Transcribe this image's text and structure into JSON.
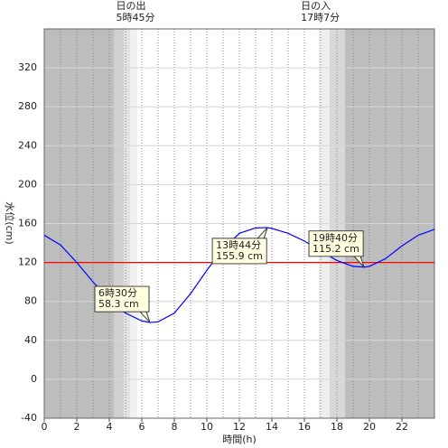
{
  "chart_data": {
    "type": "line",
    "x_label": "時間(h)",
    "y_label": "水位(cm)",
    "x": [
      0,
      1,
      2,
      3,
      4,
      5,
      6,
      6.5,
      7,
      8,
      9,
      10,
      11,
      12,
      13,
      13.73,
      14,
      15,
      16,
      17,
      18,
      19,
      19.67,
      20,
      21,
      22,
      23,
      24
    ],
    "series": [
      {
        "color": "#0000ff",
        "values": [
          148,
          138,
          120,
          100,
          82,
          68,
          60,
          58.3,
          59,
          68,
          88,
          112,
          134,
          150,
          155.5,
          155.9,
          155,
          150,
          142,
          132,
          122,
          116,
          115.2,
          116,
          124,
          137,
          148,
          154
        ]
      }
    ],
    "xlim": [
      0,
      24
    ],
    "xticks": [
      0,
      2,
      4,
      6,
      8,
      10,
      12,
      14,
      16,
      18,
      20,
      22
    ],
    "ylim": [
      -40,
      360
    ],
    "yticks": [
      -40,
      0,
      40,
      80,
      120,
      160,
      200,
      240,
      280,
      320
    ],
    "grid": true,
    "reference_line": {
      "value": 120,
      "color": "#ff0000"
    },
    "sun": [
      {
        "title": "日の出",
        "time": "5時45分",
        "x": 5.75
      },
      {
        "title": "日の入",
        "time": "17時7分",
        "x": 17.12
      }
    ],
    "annotations": [
      {
        "x": 6.5,
        "y": 58.3,
        "lines": [
          "6時30分",
          "58.3 cm"
        ],
        "placement": "above"
      },
      {
        "x": 13.73,
        "y": 155.9,
        "lines": [
          "13時44分",
          "155.9 cm"
        ],
        "placement": "below"
      },
      {
        "x": 19.67,
        "y": 115.2,
        "lines": [
          "19時40分",
          "115.2 cm"
        ],
        "placement": "above"
      }
    ]
  }
}
